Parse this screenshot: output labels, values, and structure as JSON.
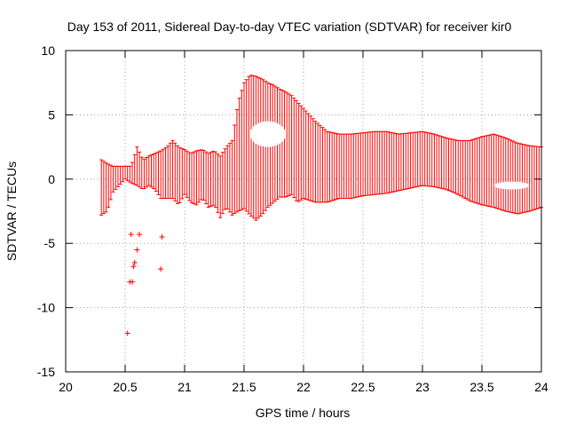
{
  "chart_data": {
    "type": "scatter",
    "title": "Day 153 of 2011, Sidereal Day-to-day VTEC variation (SDTVAR) for receiver kir0",
    "xlabel": "GPS time / hours",
    "ylabel": "SDTVAR / TECUs",
    "xlim": [
      20,
      24
    ],
    "ylim": [
      -15,
      10
    ],
    "xticks": [
      20,
      20.5,
      21,
      21.5,
      22,
      22.5,
      23,
      23.5,
      24
    ],
    "xtick_labels": [
      "20",
      "20.5",
      "21",
      "21.5",
      "22",
      "22.5",
      "23",
      "23.5",
      "24"
    ],
    "yticks": [
      -15,
      -10,
      -5,
      0,
      5,
      10
    ],
    "ytick_labels": [
      "-15",
      "-10",
      "-5",
      "0",
      "5",
      "10"
    ],
    "grid": true,
    "color": "#ff0000",
    "marker": "errorbar",
    "series": [
      {
        "name": "SDTVAR error bars (x, ymin, ymax)",
        "x": [
          20.3,
          20.35,
          20.4,
          20.45,
          20.5,
          20.55,
          20.6,
          20.65,
          20.7,
          20.75,
          20.8,
          20.85,
          20.9,
          20.95,
          21.0,
          21.05,
          21.1,
          21.15,
          21.2,
          21.25,
          21.3,
          21.35,
          21.4,
          21.45,
          21.5,
          21.55,
          21.6,
          21.65,
          21.7,
          21.75,
          21.8,
          21.85,
          21.9,
          21.95,
          22.0,
          22.1,
          22.2,
          22.3,
          22.4,
          22.5,
          22.6,
          22.7,
          22.8,
          22.9,
          23.0,
          23.1,
          23.2,
          23.3,
          23.4,
          23.5,
          23.6,
          23.7,
          23.8,
          23.9,
          24.0
        ],
        "ymin": [
          -2.8,
          -2.5,
          -1.0,
          -0.5,
          0.0,
          -0.3,
          -0.5,
          -0.8,
          -0.5,
          -0.8,
          -1.5,
          -1.5,
          -1.5,
          -2.0,
          -1.2,
          -1.8,
          -2.0,
          -1.5,
          -2.2,
          -2.0,
          -3.0,
          -2.2,
          -2.8,
          -2.5,
          -2.3,
          -2.8,
          -3.2,
          -2.8,
          -2.2,
          -1.8,
          -1.4,
          -1.4,
          -1.2,
          -1.8,
          -1.5,
          -1.8,
          -1.8,
          -1.5,
          -1.5,
          -1.3,
          -1.2,
          -1.1,
          -0.9,
          -0.7,
          -0.5,
          -0.6,
          -0.8,
          -1.2,
          -1.7,
          -2.0,
          -2.2,
          -2.5,
          -2.7,
          -2.5,
          -2.2
        ],
        "ymax": [
          1.5,
          1.2,
          1.0,
          1.0,
          1.0,
          1.0,
          2.5,
          1.5,
          1.8,
          2.0,
          2.2,
          2.5,
          3.0,
          2.5,
          2.3,
          2.0,
          2.2,
          2.3,
          2.0,
          2.2,
          1.8,
          2.5,
          3.0,
          6.0,
          7.5,
          8.1,
          8.0,
          7.8,
          7.5,
          7.3,
          7.0,
          6.8,
          6.5,
          6.0,
          5.5,
          4.5,
          3.7,
          3.5,
          3.5,
          3.6,
          3.7,
          3.7,
          3.5,
          3.6,
          3.7,
          3.5,
          3.2,
          3.0,
          3.0,
          3.3,
          3.5,
          3.2,
          2.8,
          2.6,
          2.5
        ]
      },
      {
        "name": "isolated points",
        "x": [
          20.52,
          20.54,
          20.55,
          20.56,
          20.57,
          20.58,
          20.6,
          20.62,
          20.8,
          20.81
        ],
        "y": [
          -12.0,
          -8.0,
          -4.3,
          -8.0,
          -6.8,
          -6.5,
          -5.5,
          -4.3,
          -7.0,
          -4.5
        ]
      }
    ],
    "gaps": [
      {
        "x": [
          21.55,
          21.85
        ],
        "ymin": 2.5,
        "ymax": 4.5
      },
      {
        "x": [
          23.6,
          23.9
        ],
        "ymin": -0.8,
        "ymax": -0.2
      }
    ]
  }
}
